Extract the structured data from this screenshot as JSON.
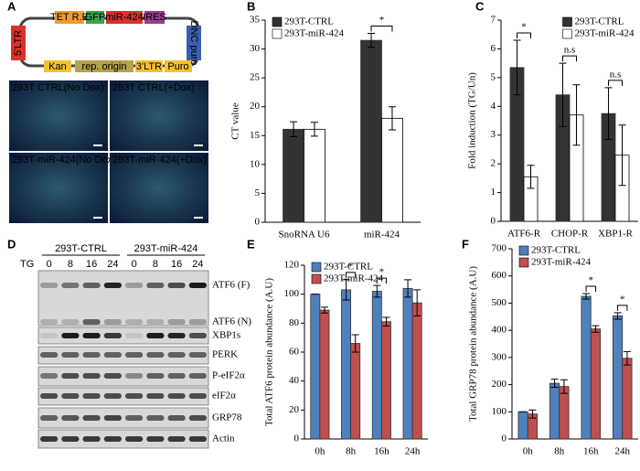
{
  "panel_labels": [
    "A",
    "B",
    "C",
    "D",
    "E",
    "F"
  ],
  "panel_a": {
    "vector_parts": [
      "TET R.E",
      "GFP",
      "miR-424",
      "IRES",
      "5'LTR",
      "DNC puro",
      "Kan",
      "rep. origin",
      "3'LTR",
      "Puro"
    ],
    "images": [
      "293T CTRL(No Dox)",
      "293T CTRL(+Dox)",
      "293T-miR-424(No Dox)",
      "293T-miR-424(+Dox)"
    ]
  },
  "panel_d": {
    "groups": [
      "293T-CTRL",
      "293T-miR-424"
    ],
    "treatment": "TG",
    "lanes": [
      "0",
      "8",
      "16",
      "24",
      "0",
      "8",
      "16",
      "24"
    ],
    "bands": [
      "ATF6 (F)",
      "ATF6 (N)",
      "XBP1s",
      "PERK",
      "P-eIF2α",
      "eIF2α",
      "GRP78",
      "Actin"
    ]
  },
  "chart_data": [
    {
      "type": "bar",
      "ylabel": "CT value",
      "categories": [
        "SnoRNA U6",
        "miR-424"
      ],
      "series": [
        {
          "name": "293T-CTRL",
          "color": "#333333",
          "values": [
            16.1,
            31.5
          ],
          "errors": [
            1.3,
            1.2
          ]
        },
        {
          "name": "293T-miR-424",
          "color": "#ffffff",
          "values": [
            16.1,
            18.0
          ],
          "errors": [
            1.2,
            2.0
          ]
        }
      ],
      "annotations": [
        null,
        "*"
      ],
      "ylim": [
        0,
        35
      ],
      "yticks": [
        0,
        5,
        10,
        15,
        20,
        25,
        30,
        35
      ],
      "legend": "upper left"
    },
    {
      "type": "bar",
      "ylabel": "Fold induction (TG/Un)",
      "categories": [
        "ATF6-R",
        "CHOP-R",
        "XBP1-R"
      ],
      "series": [
        {
          "name": "293T-CTRL",
          "color": "#333333",
          "values": [
            5.35,
            4.4,
            3.75
          ],
          "errors": [
            0.95,
            1.1,
            0.9
          ]
        },
        {
          "name": "293T-miR-424",
          "color": "#ffffff",
          "values": [
            1.55,
            3.7,
            2.3
          ],
          "errors": [
            0.4,
            1.05,
            1.05
          ]
        }
      ],
      "annotations": [
        "*",
        "n.s",
        "n.s"
      ],
      "ylim": [
        0,
        7
      ],
      "yticks": [
        0,
        1,
        2,
        3,
        4,
        5,
        6,
        7
      ],
      "legend": "upper right"
    },
    {
      "type": "bar",
      "ylabel": "Total ATF6 protein abundance (A.U)",
      "categories": [
        "0h",
        "8h",
        "16h",
        "24h"
      ],
      "series": [
        {
          "name": "293T-CTRL",
          "color": "#4f81bd",
          "values": [
            100,
            103,
            102,
            104
          ],
          "errors": [
            0,
            7,
            4,
            6
          ]
        },
        {
          "name": "293T-miR-424",
          "color": "#c0504d",
          "values": [
            89,
            66,
            81,
            94
          ],
          "errors": [
            2,
            6,
            3,
            9
          ]
        }
      ],
      "annotations": [
        null,
        "*",
        "*",
        null
      ],
      "ylim": [
        0,
        120
      ],
      "yticks": [
        0,
        20,
        40,
        60,
        80,
        100,
        120
      ],
      "legend": "upper left"
    },
    {
      "type": "bar",
      "ylabel": "Total GRP78 protein abundance (A.U)",
      "categories": [
        "0h",
        "8h",
        "16h",
        "24h"
      ],
      "series": [
        {
          "name": "293T-CTRL",
          "color": "#4f81bd",
          "values": [
            100,
            205,
            525,
            453
          ],
          "errors": [
            0,
            15,
            10,
            12
          ]
        },
        {
          "name": "293T-miR-424",
          "color": "#c0504d",
          "values": [
            92,
            193,
            405,
            297
          ],
          "errors": [
            15,
            25,
            12,
            25
          ]
        }
      ],
      "annotations": [
        null,
        null,
        "*",
        "*"
      ],
      "ylim": [
        0,
        700
      ],
      "yticks": [
        0,
        100,
        200,
        300,
        400,
        500,
        600,
        700
      ],
      "legend": "upper left"
    }
  ]
}
